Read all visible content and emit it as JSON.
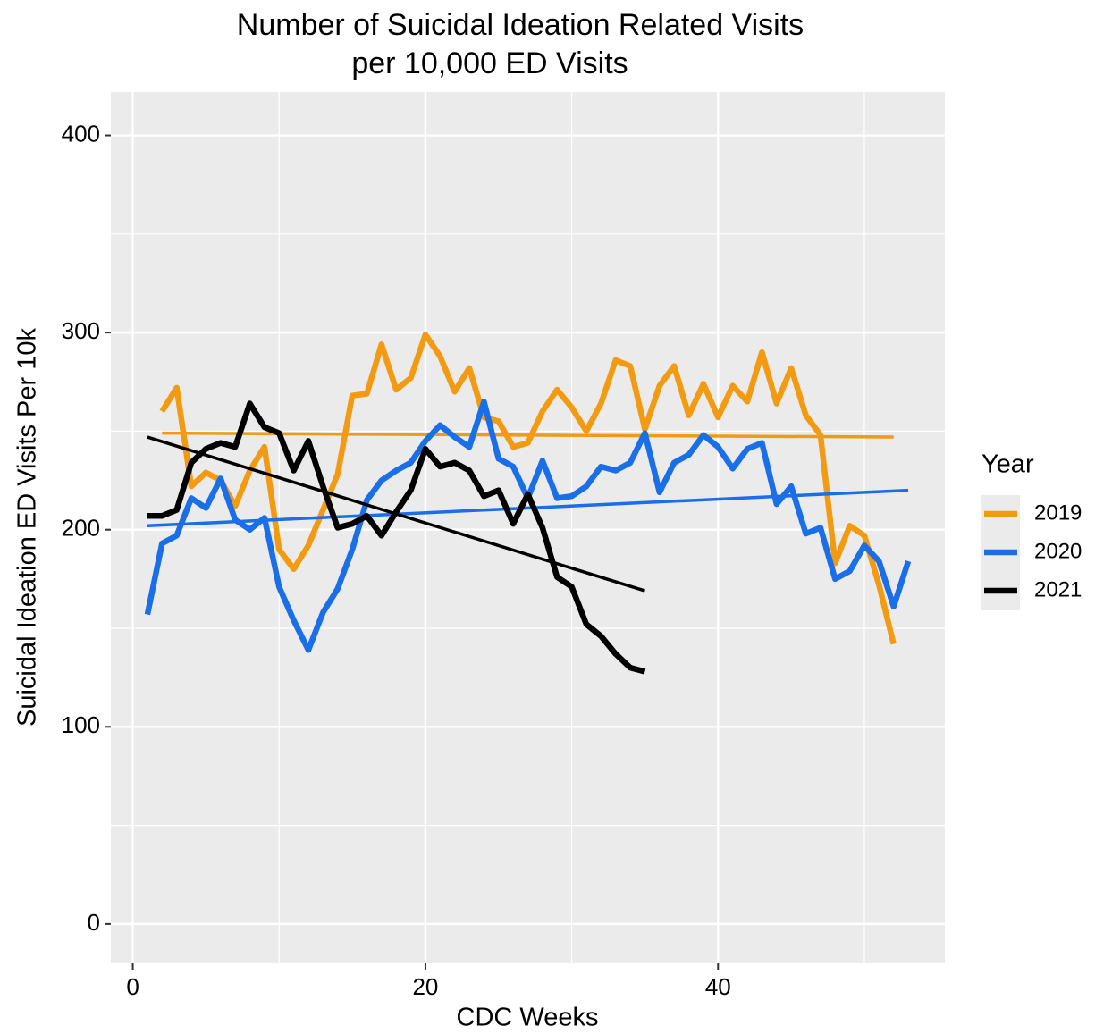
{
  "chart_data": {
    "type": "line",
    "title": [
      "Number of Suicidal Ideation Related Visits",
      "per 10,000 ED Visits"
    ],
    "x_label": "CDC Weeks",
    "y_label": "Suicidal Ideation ED Visits Per 10k",
    "legend_title": "Year",
    "xlim": [
      -1.5,
      55.5
    ],
    "ylim": [
      -20,
      422
    ],
    "xticks": [
      0,
      20,
      40
    ],
    "yticks": [
      0,
      100,
      200,
      300,
      400
    ],
    "x_minor_grid": [
      10,
      30,
      50
    ],
    "y_minor_grid": [
      50,
      150,
      250,
      350
    ],
    "grid": true,
    "series": [
      {
        "name": "2019",
        "color": "#f29b12",
        "x": [
          2,
          3,
          4,
          5,
          6,
          7,
          8,
          9,
          10,
          11,
          12,
          13,
          14,
          15,
          16,
          17,
          18,
          19,
          20,
          21,
          22,
          23,
          24,
          25,
          26,
          27,
          28,
          29,
          30,
          31,
          32,
          33,
          34,
          35,
          36,
          37,
          38,
          39,
          40,
          41,
          42,
          43,
          44,
          45,
          46,
          47,
          48,
          49,
          50,
          51,
          52
        ],
        "values": [
          260,
          272,
          222,
          229,
          225,
          212,
          230,
          242,
          190,
          180,
          192,
          210,
          228,
          268,
          269,
          294,
          271,
          277,
          299,
          288,
          270,
          282,
          257,
          255,
          242,
          244,
          260,
          271,
          262,
          250,
          264,
          286,
          283,
          251,
          273,
          283,
          258,
          274,
          257,
          273,
          265,
          290,
          264,
          282,
          258,
          248,
          183,
          202,
          197,
          172,
          142
        ],
        "trend_x": [
          2,
          52
        ],
        "trend": [
          249,
          247
        ]
      },
      {
        "name": "2020",
        "color": "#1a6ee8",
        "x": [
          1,
          2,
          3,
          4,
          5,
          6,
          7,
          8,
          9,
          10,
          11,
          12,
          13,
          14,
          15,
          16,
          17,
          18,
          19,
          20,
          21,
          22,
          23,
          24,
          25,
          26,
          27,
          28,
          29,
          30,
          31,
          32,
          33,
          34,
          35,
          36,
          37,
          38,
          39,
          40,
          41,
          42,
          43,
          44,
          45,
          46,
          47,
          48,
          49,
          50,
          51,
          52,
          53
        ],
        "values": [
          157,
          193,
          197,
          216,
          211,
          226,
          205,
          200,
          206,
          171,
          154,
          139,
          158,
          170,
          190,
          215,
          225,
          230,
          234,
          245,
          253,
          247,
          242,
          265,
          236,
          232,
          216,
          235,
          216,
          217,
          222,
          232,
          230,
          234,
          249,
          219,
          234,
          238,
          248,
          242,
          231,
          241,
          244,
          213,
          222,
          198,
          201,
          175,
          179,
          192,
          184,
          161,
          184
        ],
        "trend_x": [
          1,
          53
        ],
        "trend": [
          202,
          220
        ]
      },
      {
        "name": "2021",
        "color": "#000000",
        "x": [
          1,
          2,
          3,
          4,
          5,
          6,
          7,
          8,
          9,
          10,
          11,
          12,
          13,
          14,
          15,
          16,
          17,
          18,
          19,
          20,
          21,
          22,
          23,
          24,
          25,
          26,
          27,
          28,
          29,
          30,
          31,
          32,
          33,
          34,
          35
        ],
        "values": [
          207,
          207,
          210,
          234,
          241,
          244,
          242,
          264,
          252,
          249,
          230,
          245,
          222,
          201,
          203,
          207,
          197,
          209,
          220,
          241,
          232,
          234,
          230,
          217,
          220,
          203,
          218,
          201,
          176,
          171,
          152,
          146,
          137,
          130,
          128
        ],
        "trend_x": [
          1,
          35
        ],
        "trend": [
          247,
          169
        ]
      }
    ]
  }
}
